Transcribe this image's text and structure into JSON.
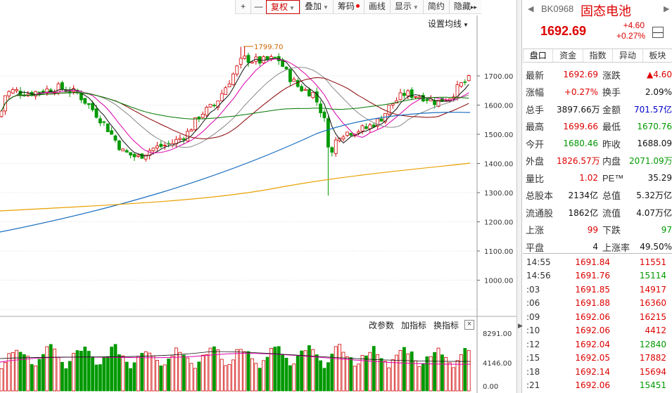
{
  "toolbar": {
    "items": [
      {
        "label": "+",
        "kind": "icon",
        "name": "zoom-in-button"
      },
      {
        "label": "—",
        "kind": "icon",
        "name": "zoom-out-button"
      },
      {
        "label": "复权",
        "caret": true,
        "active": true,
        "name": "adjust-dropdown"
      },
      {
        "label": "叠加",
        "caret": true,
        "name": "overlay-dropdown"
      },
      {
        "label": "筹码",
        "dot": true,
        "name": "chips-button"
      },
      {
        "label": "画线",
        "name": "draw-line-button"
      },
      {
        "label": "显示",
        "caret": true,
        "name": "display-dropdown"
      },
      {
        "label": "简约",
        "name": "simple-button"
      },
      {
        "label": "隐藏",
        "name": "hide-button",
        "suffix": "▸▸"
      }
    ]
  },
  "ma_setting": "设置均线",
  "peak_label": "1799.70",
  "y_ticks": [
    "1700.00",
    "1600.00",
    "1500.00",
    "1400.00",
    "1300.00",
    "1200.00",
    "1100.00",
    "1000.00"
  ],
  "vol_header": {
    "buttons": [
      "改参数",
      "加指标",
      "换指标"
    ],
    "close": "×"
  },
  "vol_ticks": [
    "8291.00",
    "4146.00",
    "0.00"
  ],
  "colors": {
    "up": "#d00000",
    "down": "#009900",
    "accent": "#cc0000"
  },
  "panel": {
    "code": "BK0968",
    "name": "固态电池",
    "price": "1692.69",
    "change": "+4.60",
    "change_pct": "+0.27%",
    "minimize": "—",
    "tabs": [
      "盘口",
      "资金",
      "指数",
      "异动",
      "板块"
    ],
    "quote": [
      {
        "l1": "最新",
        "v1": "1692.69",
        "c1": "red",
        "l2": "涨跌",
        "v2": "▲4.60",
        "c2": "red"
      },
      {
        "l1": "涨幅",
        "v1": "+0.27%",
        "c1": "red",
        "l2": "换手",
        "v2": "2.09%",
        "c2": "blk"
      },
      {
        "l1": "总手",
        "v1": "3897.66万",
        "c1": "blk",
        "l2": "金额",
        "v2": "701.57亿",
        "c2": "blue"
      },
      {
        "l1": "最高",
        "v1": "1699.66",
        "c1": "red",
        "l2": "最低",
        "v2": "1670.76",
        "c2": "green"
      },
      {
        "l1": "今开",
        "v1": "1680.46",
        "c1": "green",
        "l2": "昨收",
        "v2": "1688.09",
        "c2": "blk"
      },
      {
        "l1": "外盘",
        "v1": "1826.57万",
        "c1": "red",
        "l2": "内盘",
        "v2": "2071.09万",
        "c2": "green"
      },
      {
        "l1": "量比",
        "v1": "1.02",
        "c1": "red",
        "l2": "PE™",
        "v2": "35.29",
        "c2": "blk"
      },
      {
        "l1": "总股本",
        "v1": "2134亿",
        "c1": "blk",
        "l2": "总值",
        "v2": "5.32万亿",
        "c2": "blk"
      },
      {
        "l1": "流通股",
        "v1": "1862亿",
        "c1": "blk",
        "l2": "流值",
        "v2": "4.07万亿",
        "c2": "blk"
      },
      {
        "l1": "上涨",
        "v1": "99",
        "c1": "red",
        "l2": "下跌",
        "v2": "97",
        "c2": "green"
      },
      {
        "l1": "平盘",
        "v1": "4",
        "c1": "blk",
        "l2": "上涨率",
        "v2": "49.50%",
        "c2": "blk"
      }
    ],
    "ticks": [
      {
        "t": "14:55",
        "p": "1691.84",
        "v": "11551",
        "c": "red"
      },
      {
        "t": "14:56",
        "p": "1691.76",
        "v": "15114",
        "c": "green"
      },
      {
        "t": ":03",
        "p": "1691.85",
        "v": "14917",
        "c": "red"
      },
      {
        "t": ":06",
        "p": "1691.88",
        "v": "16360",
        "c": "red"
      },
      {
        "t": ":09",
        "p": "1692.06",
        "v": "16215",
        "c": "red"
      },
      {
        "t": ":10",
        "p": "1692.06",
        "v": "4412",
        "c": "red"
      },
      {
        "t": ":12",
        "p": "1692.04",
        "v": "12840",
        "c": "green"
      },
      {
        "t": ":15",
        "p": "1692.05",
        "v": "17882",
        "c": "red"
      },
      {
        "t": ":18",
        "p": "1692.14",
        "v": "15694",
        "c": "red"
      },
      {
        "t": ":21",
        "p": "1692.06",
        "v": "15451",
        "c": "green"
      }
    ]
  }
}
